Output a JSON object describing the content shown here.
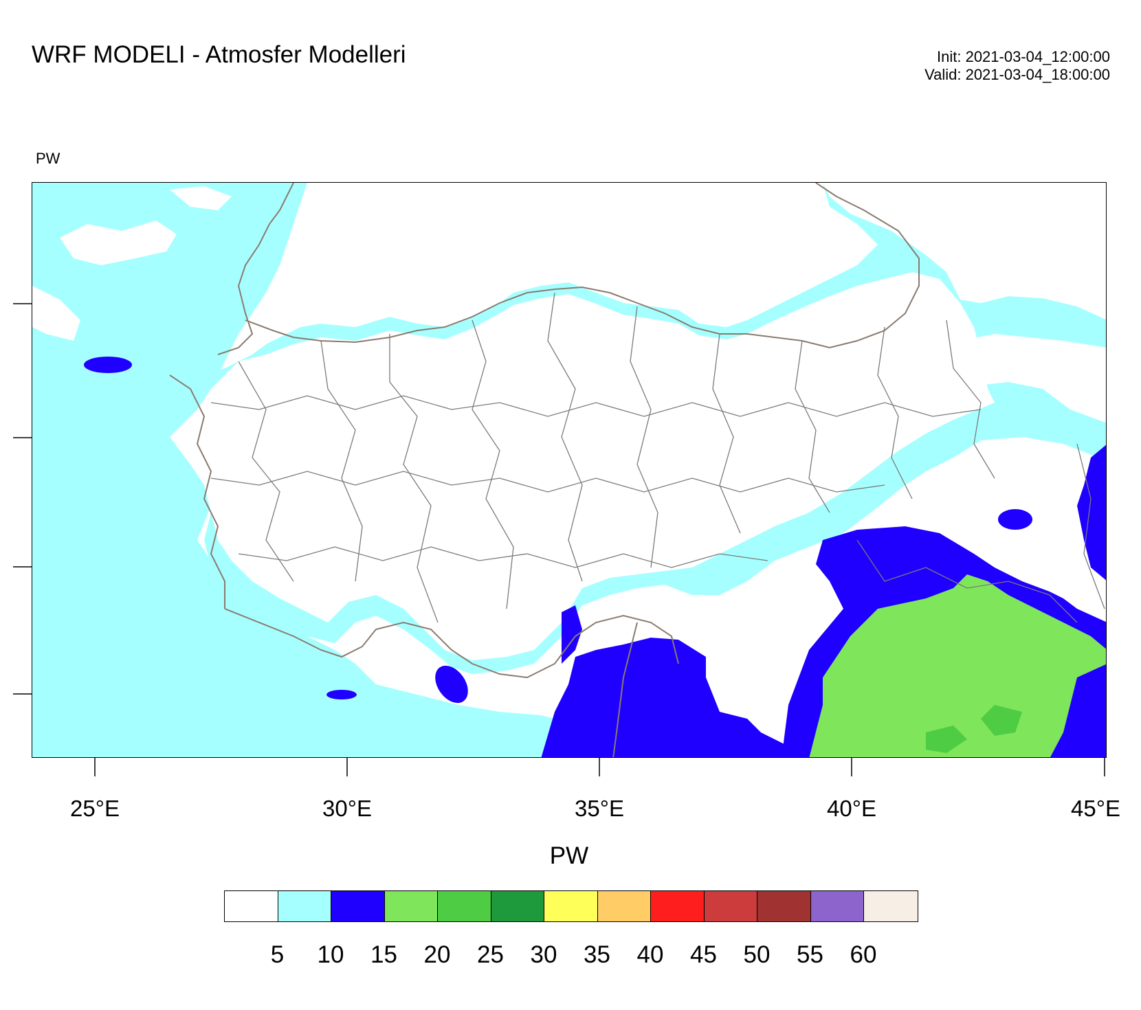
{
  "header": {
    "title": "WRF MODELI - Atmosfer Modelleri",
    "init": "Init: 2021-03-04_12:00:00",
    "valid": "Valid: 2021-03-04_18:00:00"
  },
  "map": {
    "variable_label": "PW",
    "lon_ticks": [
      "25°E",
      "30°E",
      "35°E",
      "40°E",
      "45°E"
    ],
    "colors": {
      "background": "#ffffff",
      "band_5_10": "#a6ffff",
      "band_10_15": "#1f00ff",
      "band_15_20": "#7fe55a",
      "band_20_25": "#4dcc44",
      "border": "#8a7a6e",
      "province": "#7a7a7a"
    }
  },
  "colorbar": {
    "title": "PW",
    "colors": [
      "#ffffff",
      "#a6ffff",
      "#1f00ff",
      "#7fe55a",
      "#4dcc44",
      "#1e9a3c",
      "#ffff5a",
      "#ffcc66",
      "#ff1e1e",
      "#cc3c3c",
      "#a03232",
      "#8c64cc",
      "#f7efe5"
    ],
    "labels": [
      "5",
      "10",
      "15",
      "20",
      "25",
      "30",
      "35",
      "40",
      "45",
      "50",
      "55",
      "60"
    ]
  }
}
